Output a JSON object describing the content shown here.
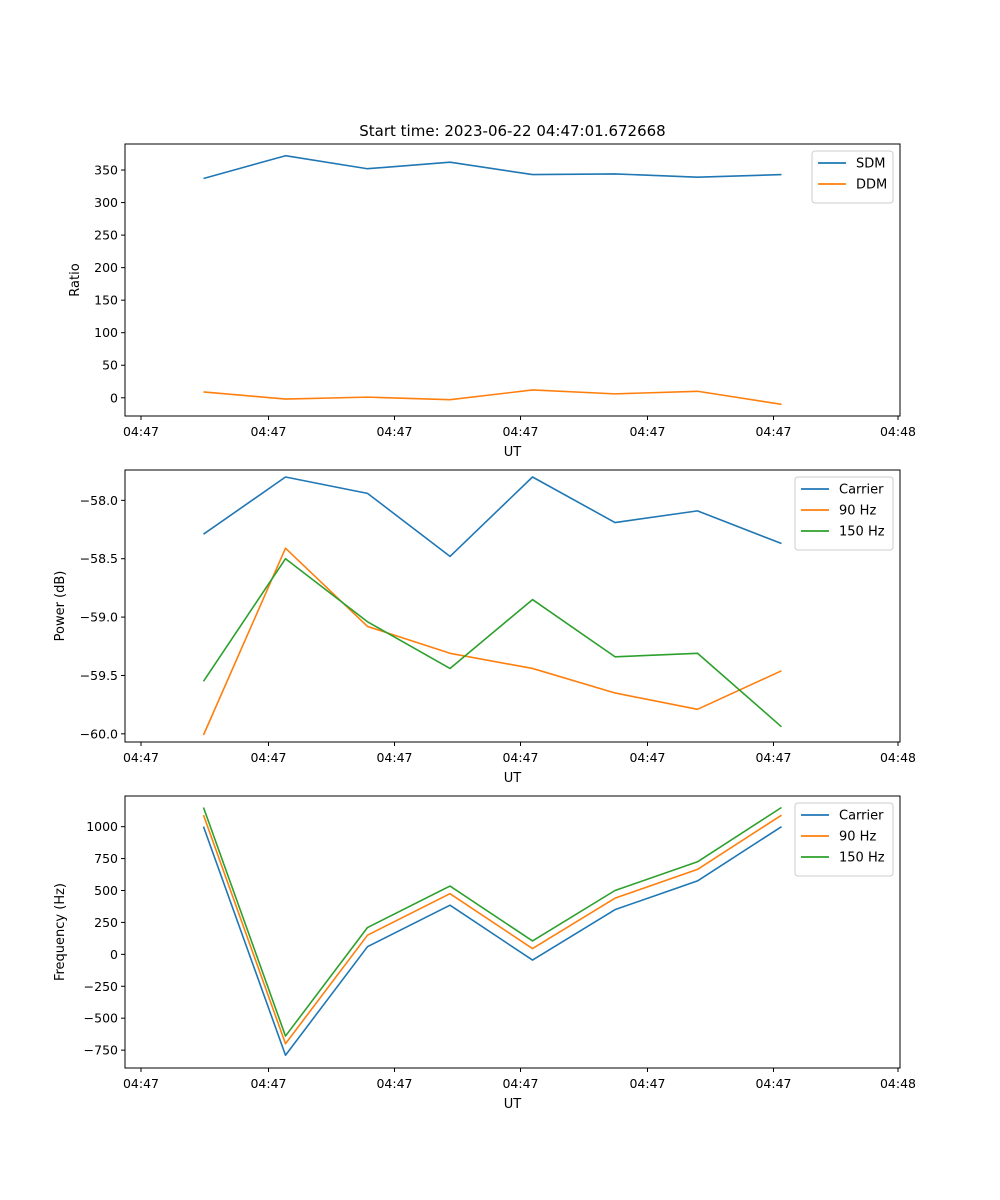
{
  "title": "Start time: 2023-06-22 04:47:01.672668",
  "colors": {
    "blue": "#1f77b4",
    "orange": "#ff7f0e",
    "green": "#2ca02c",
    "legend_border": "#cccccc"
  },
  "chart_data": [
    {
      "type": "line",
      "xlabel": "UT",
      "ylabel": "Ratio",
      "x_tick_labels": [
        "04:47",
        "04:47",
        "04:47",
        "04:47",
        "04:47",
        "04:47",
        "04:48"
      ],
      "y_ticks": [
        0,
        50,
        100,
        150,
        200,
        250,
        300,
        350
      ],
      "y_tick_labels": [
        "0",
        "50",
        "100",
        "150",
        "200",
        "250",
        "300",
        "350"
      ],
      "ylim": [
        -28,
        390
      ],
      "legend_position": "upper right",
      "series": [
        {
          "name": "SDM",
          "color": "#1f77b4",
          "values": [
            337,
            372,
            352,
            362,
            343,
            344,
            339,
            343
          ]
        },
        {
          "name": "DDM",
          "color": "#ff7f0e",
          "values": [
            9,
            -2,
            1,
            -3,
            12,
            6,
            10,
            -10
          ]
        }
      ]
    },
    {
      "type": "line",
      "xlabel": "UT",
      "ylabel": "Power (dB)",
      "x_tick_labels": [
        "04:47",
        "04:47",
        "04:47",
        "04:47",
        "04:47",
        "04:47",
        "04:48"
      ],
      "y_ticks": [
        -58.0,
        -58.5,
        -59.0,
        -59.5,
        -60.0
      ],
      "y_tick_labels": [
        "−58.0",
        "−58.5",
        "−59.0",
        "−59.5",
        "−60.0"
      ],
      "ylim": [
        -60.07,
        -57.74
      ],
      "legend_position": "upper right",
      "series": [
        {
          "name": "Carrier",
          "color": "#1f77b4",
          "values": [
            -58.29,
            -57.8,
            -57.94,
            -58.48,
            -57.8,
            -58.19,
            -58.09,
            -58.37
          ]
        },
        {
          "name": "90 Hz",
          "color": "#ff7f0e",
          "values": [
            -60.01,
            -58.41,
            -59.08,
            -59.31,
            -59.44,
            -59.65,
            -59.79,
            -59.46
          ]
        },
        {
          "name": "150 Hz",
          "color": "#2ca02c",
          "values": [
            -59.55,
            -58.5,
            -59.04,
            -59.44,
            -58.85,
            -59.34,
            -59.31,
            -59.94
          ]
        }
      ]
    },
    {
      "type": "line",
      "xlabel": "UT",
      "ylabel": "Frequency (Hz)",
      "x_tick_labels": [
        "04:47",
        "04:47",
        "04:47",
        "04:47",
        "04:47",
        "04:47",
        "04:48"
      ],
      "y_ticks": [
        -750,
        -500,
        -250,
        0,
        250,
        500,
        750,
        1000
      ],
      "y_tick_labels": [
        "−750",
        "−500",
        "−250",
        "0",
        "250",
        "500",
        "750",
        "1000"
      ],
      "ylim": [
        -890,
        1240
      ],
      "legend_position": "upper right",
      "series": [
        {
          "name": "Carrier",
          "color": "#1f77b4",
          "values": [
            1000,
            -790,
            60,
            385,
            -45,
            350,
            575,
            1000
          ]
        },
        {
          "name": "90 Hz",
          "color": "#ff7f0e",
          "values": [
            1090,
            -700,
            150,
            475,
            45,
            440,
            665,
            1090
          ]
        },
        {
          "name": "150 Hz",
          "color": "#2ca02c",
          "values": [
            1150,
            -640,
            210,
            535,
            105,
            500,
            725,
            1150
          ]
        }
      ]
    }
  ]
}
